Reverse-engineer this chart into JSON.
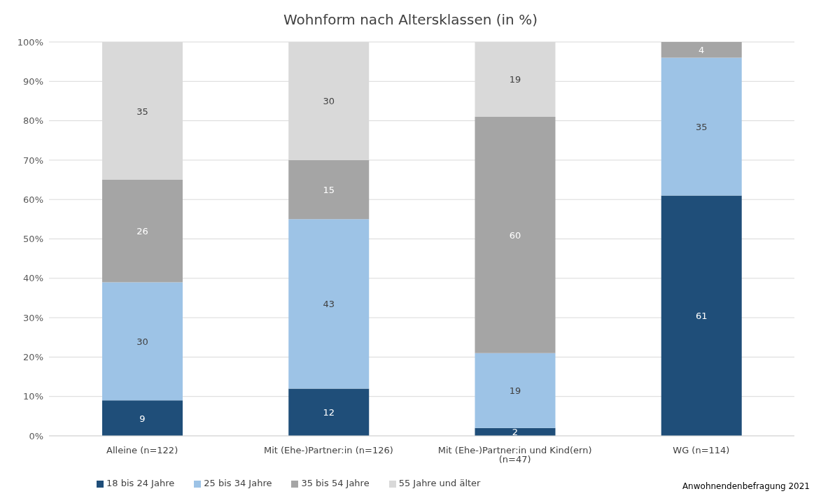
{
  "chart_data": {
    "type": "bar",
    "title": "Wohnform nach Altersklassen (in %)",
    "categories": [
      "Alleine (n=122)",
      "Mit (Ehe-)Partner:in (n=126)",
      "Mit (Ehe-)Partner:in und Kind(ern) (n=47)",
      "WG (n=114)"
    ],
    "stacked": true,
    "series": [
      {
        "name": "18 bis 24 Jahre",
        "color": "#1f4e79",
        "values": [
          9,
          12,
          2,
          61
        ],
        "value_labels": [
          "9",
          "12",
          "2",
          "61"
        ]
      },
      {
        "name": "25 bis 34 Jahre",
        "color": "#9dc3e6",
        "values": [
          30,
          43,
          19,
          35
        ],
        "value_labels": [
          "30",
          "43",
          "19",
          "35"
        ]
      },
      {
        "name": "35 bis 54 Jahre",
        "color": "#a5a5a5",
        "values": [
          26,
          15,
          60,
          4
        ],
        "value_labels": [
          "26",
          "15",
          "60",
          "4"
        ]
      },
      {
        "name": "55 Jahre und älter",
        "color": "#d9d9d9",
        "values": [
          35,
          30,
          19,
          0
        ],
        "value_labels": [
          "35",
          "30",
          "19",
          null
        ]
      }
    ],
    "ylim": [
      0,
      100
    ],
    "yticks": [
      {
        "value": 0,
        "label": "0%"
      },
      {
        "value": 10,
        "label": "10%"
      },
      {
        "value": 20,
        "label": "20%"
      },
      {
        "value": 30,
        "label": "30%"
      },
      {
        "value": 40,
        "label": "40%"
      },
      {
        "value": 50,
        "label": "50%"
      },
      {
        "value": 60,
        "label": "60%"
      },
      {
        "value": 70,
        "label": "70%"
      },
      {
        "value": 80,
        "label": "80%"
      },
      {
        "value": 90,
        "label": "90%"
      },
      {
        "value": 100,
        "label": "100%"
      }
    ],
    "grid": "y",
    "legend": "bottom left",
    "annotations": [
      "Anwohnendenbefragung 2021"
    ]
  }
}
